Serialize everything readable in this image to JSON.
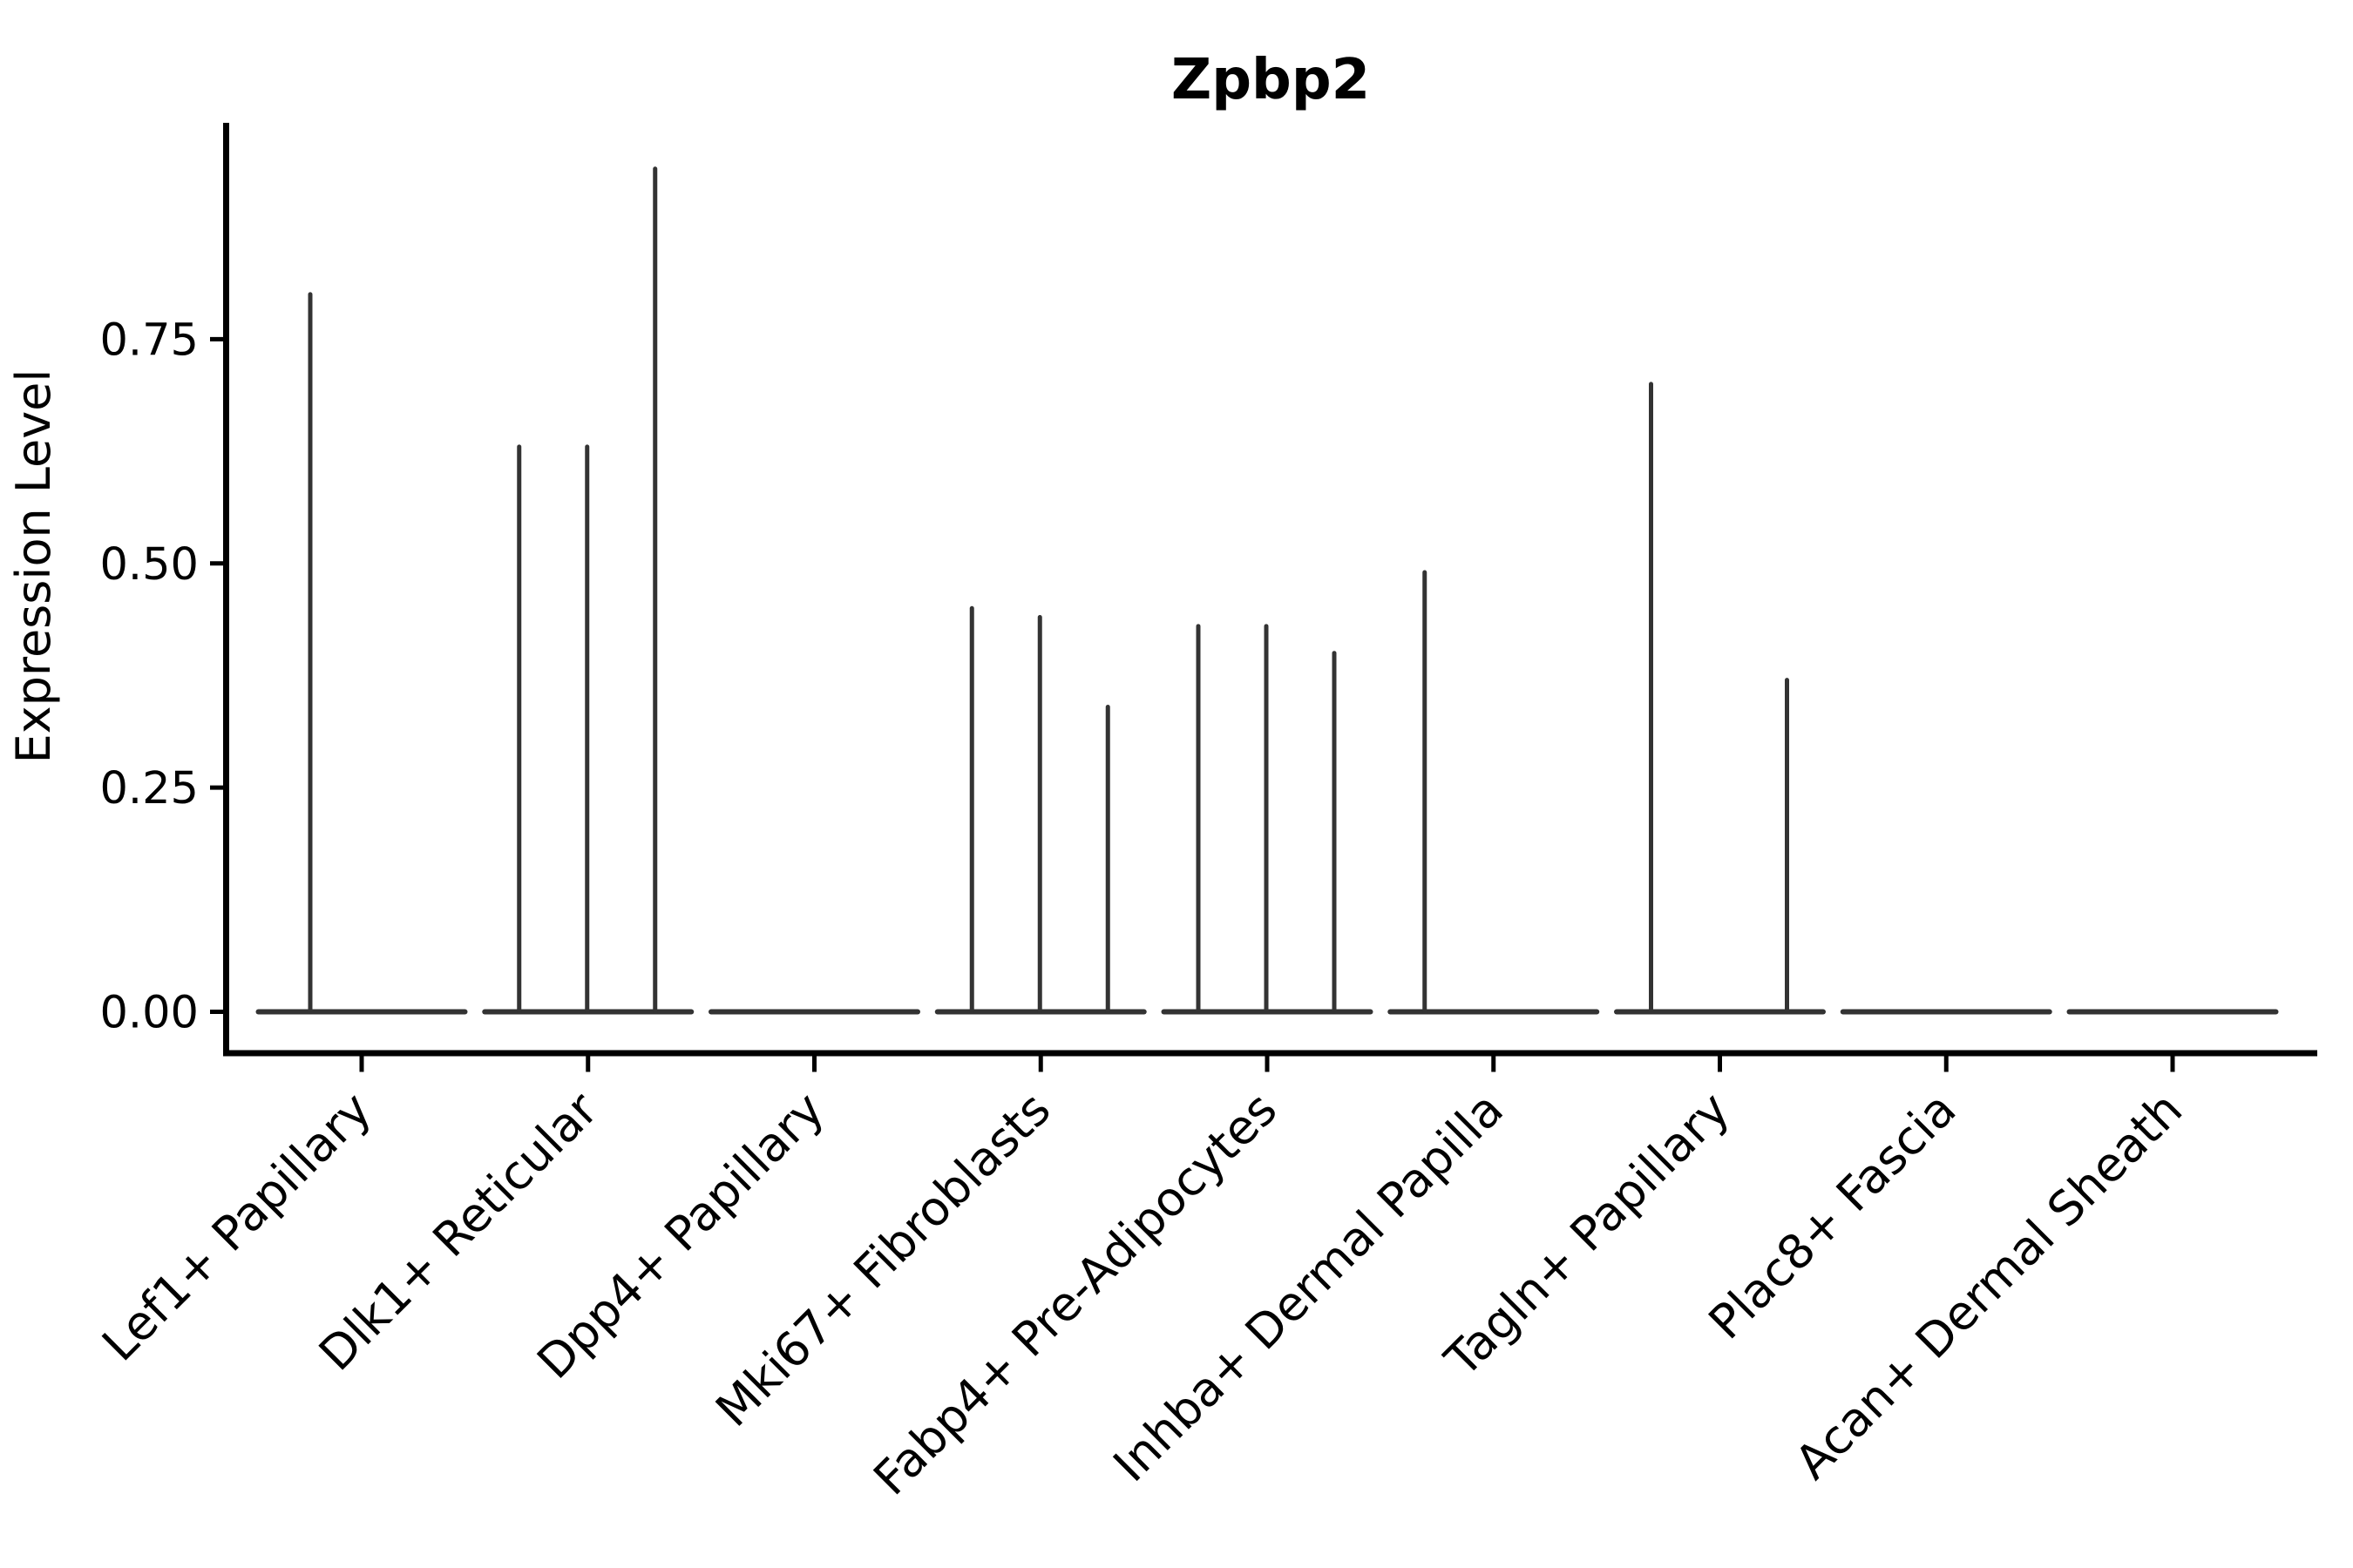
{
  "chart_data": {
    "type": "violin",
    "title": "Zpbp2",
    "ylabel": "Expression Level",
    "xlabel": "",
    "ylim": [
      0,
      0.99
    ],
    "grid": false,
    "legend": "none",
    "yticks": [
      {
        "value": 0.0,
        "label": "0.00"
      },
      {
        "value": 0.25,
        "label": "0.25"
      },
      {
        "value": 0.5,
        "label": "0.50"
      },
      {
        "value": 0.75,
        "label": "0.75"
      }
    ],
    "colors": {
      "violin": "#333333",
      "axis": "#000000",
      "text": "#000000",
      "background": "#ffffff"
    },
    "categories": [
      {
        "label": "Lef1+ Papillary",
        "spikes": [
          {
            "offset": -59,
            "value": 0.8
          }
        ]
      },
      {
        "label": "Dlk1+ Reticular",
        "spikes": [
          {
            "offset": -79,
            "value": 0.63
          },
          {
            "offset": -1,
            "value": 0.63
          },
          {
            "offset": 77,
            "value": 0.94
          }
        ]
      },
      {
        "label": "Dpp4+ Papillary",
        "spikes": []
      },
      {
        "label": "Mki67+ Fibroblasts",
        "spikes": [
          {
            "offset": -79,
            "value": 0.45
          },
          {
            "offset": -1,
            "value": 0.44
          },
          {
            "offset": 77,
            "value": 0.34
          }
        ]
      },
      {
        "label": "Fabp4+ Pre-Adipocytes",
        "spikes": [
          {
            "offset": -79,
            "value": 0.43
          },
          {
            "offset": -1,
            "value": 0.43
          },
          {
            "offset": 77,
            "value": 0.4
          }
        ]
      },
      {
        "label": "Inhba+ Dermal Papilla",
        "spikes": [
          {
            "offset": -79,
            "value": 0.49
          }
        ]
      },
      {
        "label": "Tagln+ Papillary",
        "spikes": [
          {
            "offset": -79,
            "value": 0.7
          },
          {
            "offset": 77,
            "value": 0.37
          }
        ]
      },
      {
        "label": "Plac8+ Fascia",
        "spikes": []
      },
      {
        "label": "Acan+ Dermal Sheath",
        "spikes": []
      }
    ]
  }
}
